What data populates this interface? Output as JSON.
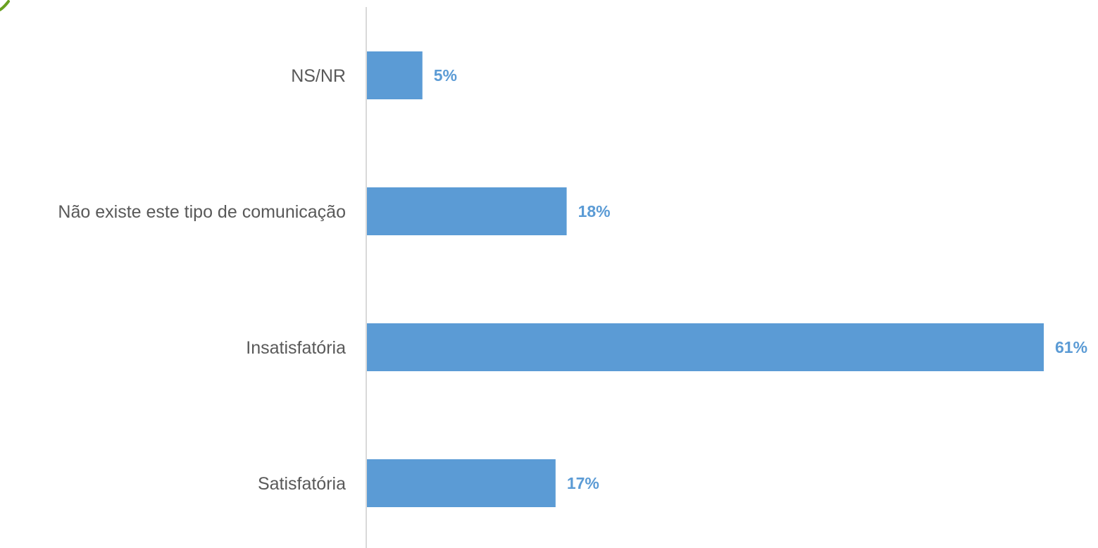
{
  "chart_data": {
    "type": "bar",
    "orientation": "horizontal",
    "categories": [
      "NS/NR",
      "Não existe este tipo de comunicação",
      "Insatisfatória",
      "Satisfatória"
    ],
    "values": [
      5,
      18,
      61,
      17
    ],
    "value_labels": [
      "5%",
      "18%",
      "61%",
      "17%"
    ],
    "unit": "%",
    "xlim": [
      0,
      61
    ],
    "grid": false,
    "legend": "none",
    "colors": {
      "bar": "#5b9bd5",
      "value_label": "#5b9bd5",
      "category_label": "#595959",
      "axis": "#d9d9d9"
    }
  }
}
